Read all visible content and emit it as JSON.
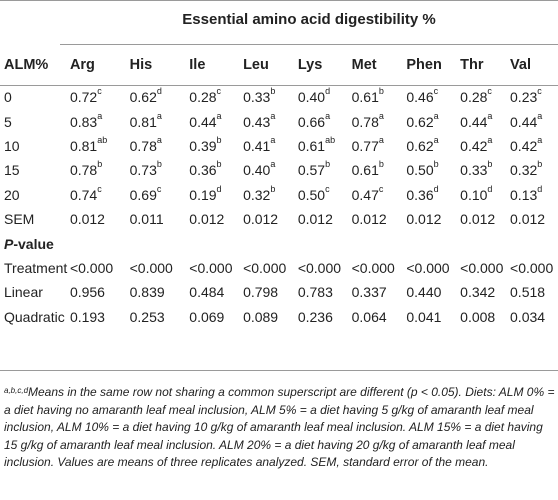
{
  "title": "Essential amino acid digestibility %",
  "columns": [
    "ALM%",
    "Arg",
    "His",
    "Ile",
    "Leu",
    "Lys",
    "Met",
    "Phen",
    "Thr",
    "Val"
  ],
  "rows": [
    {
      "label": "0",
      "cells": [
        [
          "0.72",
          "c"
        ],
        [
          "0.62",
          "d"
        ],
        [
          "0.28",
          "c"
        ],
        [
          "0.33",
          "b"
        ],
        [
          "0.40",
          "d"
        ],
        [
          "0.61",
          "b"
        ],
        [
          "0.46",
          "c"
        ],
        [
          "0.28",
          "c"
        ],
        [
          "0.23",
          "c"
        ]
      ]
    },
    {
      "label": "5",
      "cells": [
        [
          "0.83",
          "a"
        ],
        [
          "0.81",
          "a"
        ],
        [
          "0.44",
          "a"
        ],
        [
          "0.43",
          "a"
        ],
        [
          "0.66",
          "a"
        ],
        [
          "0.78",
          "a"
        ],
        [
          "0.62",
          "a"
        ],
        [
          "0.44",
          "a"
        ],
        [
          "0.44",
          "a"
        ]
      ]
    },
    {
      "label": "10",
      "cells": [
        [
          "0.81",
          "ab"
        ],
        [
          "0.78",
          "a"
        ],
        [
          "0.39",
          "b"
        ],
        [
          "0.41",
          "a"
        ],
        [
          "0.61",
          "ab"
        ],
        [
          "0.77",
          "a"
        ],
        [
          "0.62",
          "a"
        ],
        [
          "0.42",
          "a"
        ],
        [
          "0.42",
          "a"
        ]
      ]
    },
    {
      "label": "15",
      "cells": [
        [
          "0.78",
          "b"
        ],
        [
          "0.73",
          "b"
        ],
        [
          "0.36",
          "b"
        ],
        [
          "0.40",
          "a"
        ],
        [
          "0.57",
          "b"
        ],
        [
          "0.61",
          "b"
        ],
        [
          "0.50",
          "b"
        ],
        [
          "0.33",
          "b"
        ],
        [
          "0.32",
          "b"
        ]
      ]
    },
    {
      "label": "20",
      "cells": [
        [
          "0.74",
          "c"
        ],
        [
          "0.69",
          "c"
        ],
        [
          "0.19",
          "d"
        ],
        [
          "0.32",
          "b"
        ],
        [
          "0.50",
          "c"
        ],
        [
          "0.47",
          "c"
        ],
        [
          "0.36",
          "d"
        ],
        [
          "0.10",
          "d"
        ],
        [
          "0.13",
          "d"
        ]
      ]
    },
    {
      "label": "SEM",
      "cells": [
        [
          "0.012",
          ""
        ],
        [
          "0.011",
          ""
        ],
        [
          "0.012",
          ""
        ],
        [
          "0.012",
          ""
        ],
        [
          "0.012",
          ""
        ],
        [
          "0.012",
          ""
        ],
        [
          "0.012",
          ""
        ],
        [
          "0.012",
          ""
        ],
        [
          "0.012",
          ""
        ]
      ]
    }
  ],
  "pvalue_header": {
    "p": "P",
    "rest": "-value"
  },
  "pvalue_rows": [
    {
      "label": "Treatment",
      "cells": [
        "<0.000",
        "<0.000",
        "<0.000",
        "<0.000",
        "<0.000",
        "<0.000",
        "<0.000",
        "<0.000",
        "<0.000"
      ]
    },
    {
      "label": "Linear",
      "cells": [
        "0.956",
        "0.839",
        "0.484",
        "0.798",
        "0.783",
        "0.337",
        "0.440",
        "0.342",
        "0.518"
      ]
    },
    {
      "label": "Quadratic",
      "cells": [
        "0.193",
        "0.253",
        "0.069",
        "0.089",
        "0.236",
        "0.064",
        "0.041",
        "0.008",
        "0.034"
      ]
    }
  ],
  "footnote": {
    "sup": "a,b,c,d",
    "text": "Means in the same row not sharing a common superscript are different (p < 0.05). Diets: ALM 0% = a diet having no amaranth leaf meal inclusion, ALM 5% = a diet having 5 g/kg of amaranth leaf meal inclusion, ALM 10% = a diet having 10 g/kg of amaranth leaf meal inclusion. ALM 15% = a diet having 15 g/kg of amaranth leaf meal inclusion. ALM 20% = a diet having 20 g/kg of amaranth leaf meal inclusion. Values are means of three replicates analyzed. SEM, standard error of the mean."
  }
}
